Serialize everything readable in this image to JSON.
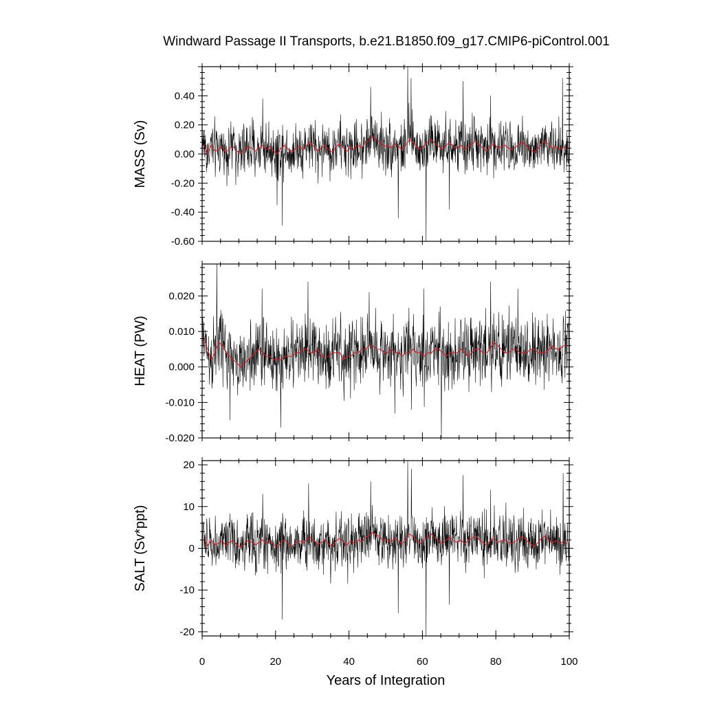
{
  "chart_data": {
    "type": "line",
    "title": "Windward Passage II Transports, b.e21.B1850.f09_g17.CMIP6-piControl.001",
    "xlabel": "Years of Integration",
    "xlim": [
      0,
      100
    ],
    "xticks": [
      0,
      20,
      40,
      60,
      80,
      100
    ],
    "xtick_labels": [
      "0",
      "20",
      "40",
      "60",
      "80",
      "100"
    ],
    "grid": false,
    "legend": "none",
    "series_style": {
      "monthly": {
        "color": "#000000"
      },
      "annual_mean": {
        "color": "#e0191f"
      }
    },
    "panels": [
      {
        "ylabel": "MASS (Sv)",
        "ylim": [
          -0.6,
          0.6
        ],
        "yticks": [
          -0.6,
          -0.4,
          -0.2,
          0.0,
          0.2,
          0.4
        ],
        "ytick_labels": [
          "-0.60",
          "-0.40",
          "-0.20",
          "0.00",
          "0.20",
          "0.40"
        ],
        "monthly_spread": 0.09,
        "annual_mean": [
          0.07,
          0.0,
          0.06,
          0.02,
          0.03,
          0.05,
          0.01,
          0.04,
          0.05,
          0.02,
          0.0,
          0.03,
          0.05,
          0.04,
          0.02,
          0.04,
          0.06,
          0.03,
          0.05,
          0.02,
          0.0,
          0.04,
          0.06,
          0.03,
          0.01,
          0.04,
          0.05,
          0.03,
          0.06,
          0.08,
          0.05,
          0.02,
          0.04,
          0.06,
          0.03,
          0.01,
          0.05,
          0.07,
          0.04,
          0.02,
          0.05,
          0.03,
          0.06,
          0.04,
          0.08,
          0.09,
          0.12,
          0.1,
          0.08,
          0.05,
          0.06,
          0.04,
          0.07,
          0.05,
          0.03,
          0.06,
          0.1,
          0.08,
          0.05,
          0.03,
          0.06,
          0.08,
          0.1,
          0.07,
          0.05,
          0.03,
          0.06,
          0.08,
          0.05,
          0.04,
          0.06,
          0.03,
          0.05,
          0.07,
          0.09,
          0.06,
          0.04,
          0.02,
          0.05,
          0.07,
          0.04,
          0.05,
          0.06,
          0.04,
          0.03,
          0.05,
          0.07,
          0.08,
          0.05,
          0.03,
          0.01,
          0.04,
          0.07,
          0.09,
          0.06,
          0.04,
          0.05,
          0.03,
          0.05,
          0.03
        ],
        "extremes": [
          {
            "x": 56.0,
            "y": 0.6
          },
          {
            "x": 61.0,
            "y": -0.6
          },
          {
            "x": 56.9,
            "y": 0.52
          },
          {
            "x": 98.2,
            "y": 0.52
          },
          {
            "x": 71.1,
            "y": 0.5
          },
          {
            "x": 21.8,
            "y": -0.49
          },
          {
            "x": 53.4,
            "y": -0.44
          },
          {
            "x": 45.9,
            "y": 0.46
          },
          {
            "x": 20.4,
            "y": -0.35
          },
          {
            "x": 78.6,
            "y": 0.4
          },
          {
            "x": 67.3,
            "y": -0.38
          },
          {
            "x": 16.5,
            "y": 0.38
          }
        ]
      },
      {
        "ylabel": "HEAT (PW)",
        "ylim": [
          -0.02,
          0.029
        ],
        "yticks": [
          -0.02,
          -0.01,
          0.0,
          0.01,
          0.02
        ],
        "ytick_labels": [
          "-0.020",
          "-0.010",
          "0.000",
          "0.010",
          "0.020"
        ],
        "monthly_spread": 0.0048,
        "annual_mean": [
          0.008,
          0.005,
          0.002,
          0.004,
          0.007,
          0.006,
          0.004,
          0.003,
          0.002,
          0.001,
          0.0,
          0.001,
          0.002,
          0.003,
          0.004,
          0.005,
          0.004,
          0.003,
          0.003,
          0.002,
          0.002,
          0.002,
          0.003,
          0.003,
          0.003,
          0.004,
          0.004,
          0.005,
          0.005,
          0.004,
          0.004,
          0.005,
          0.003,
          0.003,
          0.003,
          0.004,
          0.004,
          0.004,
          0.002,
          0.003,
          0.003,
          0.004,
          0.004,
          0.005,
          0.005,
          0.006,
          0.006,
          0.005,
          0.005,
          0.004,
          0.004,
          0.005,
          0.004,
          0.004,
          0.003,
          0.004,
          0.004,
          0.005,
          0.004,
          0.004,
          0.003,
          0.004,
          0.004,
          0.005,
          0.005,
          0.004,
          0.003,
          0.004,
          0.004,
          0.004,
          0.005,
          0.004,
          0.003,
          0.004,
          0.005,
          0.005,
          0.004,
          0.004,
          0.005,
          0.007,
          0.006,
          0.005,
          0.004,
          0.004,
          0.005,
          0.005,
          0.004,
          0.004,
          0.004,
          0.005,
          0.005,
          0.004,
          0.004,
          0.004,
          0.005,
          0.006,
          0.005,
          0.005,
          0.006,
          0.006
        ],
        "extremes": [
          {
            "x": 4.0,
            "y": 0.029
          },
          {
            "x": 65.2,
            "y": -0.021
          },
          {
            "x": 21.4,
            "y": -0.017
          },
          {
            "x": 28.8,
            "y": 0.024
          },
          {
            "x": 78.6,
            "y": 0.024
          },
          {
            "x": 7.6,
            "y": -0.015
          },
          {
            "x": 60.4,
            "y": 0.022
          },
          {
            "x": 57.0,
            "y": -0.012
          },
          {
            "x": 86.0,
            "y": 0.022
          },
          {
            "x": 16.3,
            "y": 0.022
          },
          {
            "x": 52.5,
            "y": -0.013
          },
          {
            "x": 45.5,
            "y": 0.021
          }
        ]
      },
      {
        "ylabel": "SALT (Sv*ppt)",
        "ylim": [
          -21,
          21
        ],
        "yticks": [
          -20,
          -10,
          0,
          10,
          20
        ],
        "ytick_labels": [
          "-20",
          "-10",
          "0",
          "10",
          "20"
        ],
        "monthly_spread": 3.2,
        "annual_mean": [
          2.5,
          0.5,
          2.0,
          0.8,
          1.2,
          1.8,
          0.6,
          1.5,
          1.8,
          0.8,
          0.2,
          1.0,
          1.8,
          1.5,
          0.8,
          1.4,
          2.0,
          1.2,
          1.8,
          0.8,
          0.2,
          1.5,
          2.0,
          1.0,
          0.5,
          1.4,
          1.8,
          1.2,
          2.0,
          2.6,
          1.8,
          0.9,
          1.4,
          2.0,
          1.0,
          0.4,
          1.8,
          2.4,
          1.5,
          0.8,
          1.8,
          1.2,
          2.0,
          1.5,
          2.6,
          3.0,
          3.8,
          3.3,
          2.6,
          1.8,
          2.0,
          1.5,
          2.4,
          1.8,
          1.0,
          2.0,
          3.4,
          2.8,
          1.8,
          1.1,
          2.0,
          2.7,
          3.4,
          2.4,
          1.8,
          1.1,
          2.0,
          2.7,
          1.8,
          1.4,
          2.0,
          1.1,
          1.8,
          2.4,
          3.0,
          2.0,
          1.4,
          0.8,
          1.8,
          2.4,
          1.4,
          1.8,
          2.0,
          1.4,
          1.1,
          1.8,
          2.4,
          2.7,
          1.8,
          1.1,
          0.4,
          1.4,
          2.4,
          3.0,
          2.0,
          1.4,
          1.8,
          1.1,
          1.8,
          1.0
        ],
        "extremes": [
          {
            "x": 56.0,
            "y": 21.0
          },
          {
            "x": 61.0,
            "y": -21.0
          },
          {
            "x": 57.0,
            "y": 19.0
          },
          {
            "x": 98.3,
            "y": 18.0
          },
          {
            "x": 71.1,
            "y": 17.5
          },
          {
            "x": 21.8,
            "y": -17.0
          },
          {
            "x": 53.4,
            "y": -15.5
          },
          {
            "x": 29.0,
            "y": 15.5
          },
          {
            "x": 45.9,
            "y": 16.0
          },
          {
            "x": 78.6,
            "y": 14.0
          },
          {
            "x": 67.3,
            "y": -13.5
          },
          {
            "x": 16.5,
            "y": 13.0
          }
        ]
      }
    ]
  }
}
